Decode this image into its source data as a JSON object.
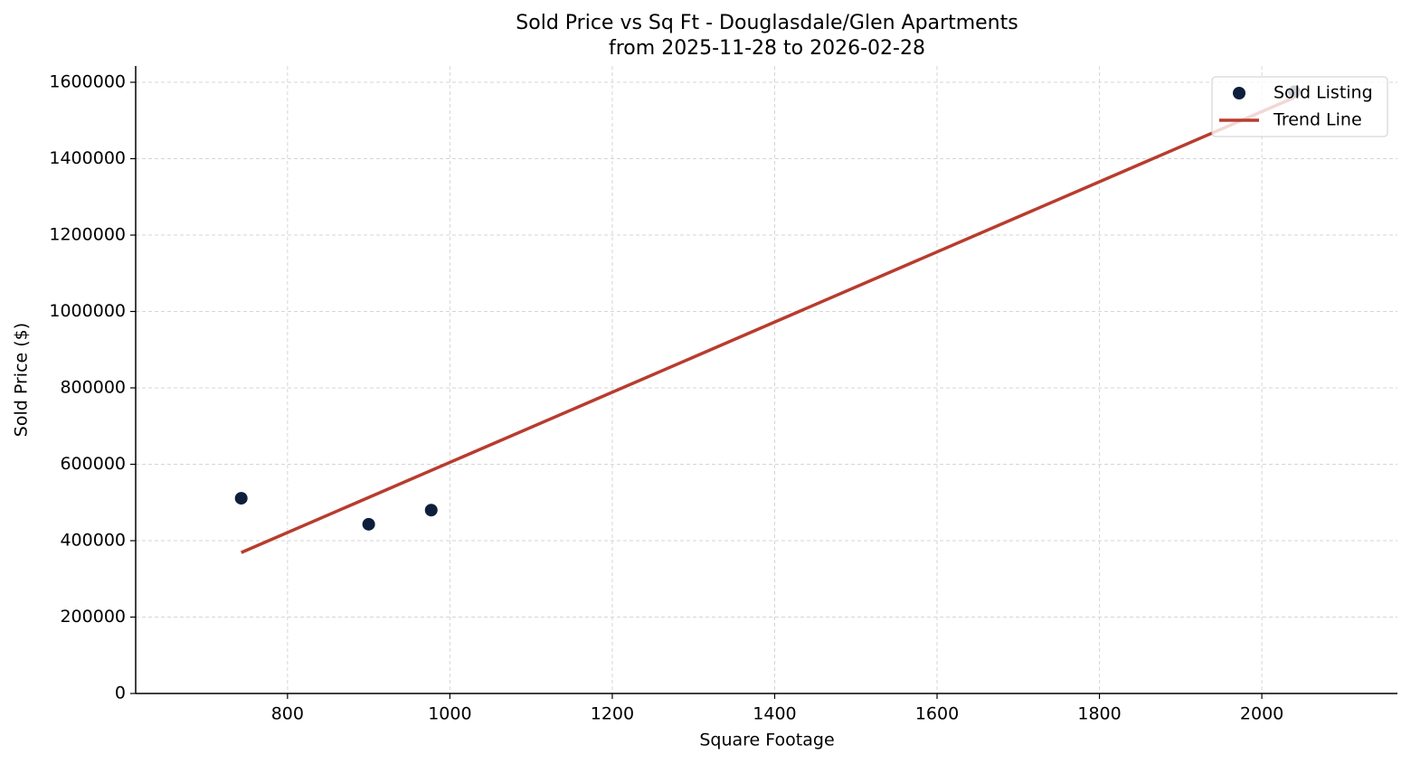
{
  "chart_data": {
    "type": "scatter",
    "title": "Sold Price vs Sq Ft - Douglasdale/Glen Apartments",
    "subtitle": "from 2025-11-28 to 2026-02-28",
    "x_label": "Square Footage",
    "y_label": "Sold Price ($)",
    "series": [
      {
        "name": "Sold Listing",
        "type": "scatter",
        "color": "#0d1f3c",
        "x": [
          743,
          900,
          977,
          2040
        ],
        "values": [
          511000,
          443000,
          480000,
          1575000
        ]
      },
      {
        "name": "Trend Line",
        "type": "line",
        "color": "#b83c2e",
        "x": [
          743,
          2040
        ],
        "values": [
          369000,
          1560000
        ]
      }
    ],
    "xlim": [
      613,
      2167
    ],
    "ylim": [
      0,
      1642600
    ],
    "xticks": [
      800,
      1000,
      1200,
      1400,
      1600,
      1800,
      2000
    ],
    "yticks": [
      0,
      200000,
      400000,
      600000,
      800000,
      1000000,
      1200000,
      1400000,
      1600000
    ],
    "grid": true,
    "legend": "upper-right"
  }
}
